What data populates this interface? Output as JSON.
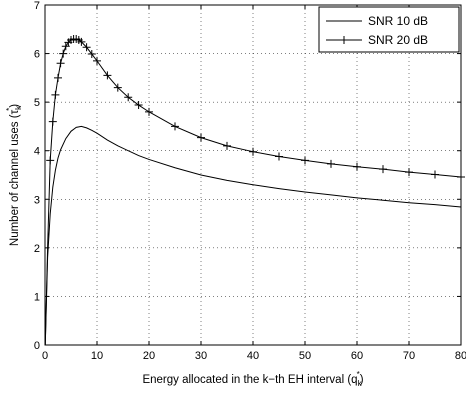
{
  "chart_data": {
    "type": "line",
    "xlabel": "Energy allocated in the k−th EH interval (q",
    "xlabel_sub": "k",
    "xlabel_sup": "*",
    "xlabel_end": ")",
    "ylabel": "Number of channel uses (τ",
    "ylabel_sub": "k",
    "ylabel_sup": "*",
    "ylabel_end": ")",
    "xlim": [
      0,
      80
    ],
    "ylim": [
      0,
      7
    ],
    "x_ticks": [
      0,
      10,
      20,
      30,
      40,
      50,
      60,
      70,
      80
    ],
    "y_ticks": [
      0,
      1,
      2,
      3,
      4,
      5,
      6,
      7
    ],
    "grid": true,
    "legend_position": "top-right",
    "series": [
      {
        "name": "SNR 10 dB",
        "marker": "none",
        "color": "#000000",
        "x": [
          0.05,
          0.5,
          1,
          1.5,
          2,
          2.5,
          3,
          4,
          5,
          6,
          7,
          8,
          9,
          10,
          12,
          14,
          16,
          18,
          20,
          25,
          30,
          35,
          40,
          45,
          50,
          55,
          60,
          65,
          70,
          75,
          80
        ],
        "y": [
          0.0,
          1.8,
          2.7,
          3.25,
          3.6,
          3.85,
          4.02,
          4.25,
          4.4,
          4.48,
          4.5,
          4.47,
          4.42,
          4.36,
          4.22,
          4.1,
          4.0,
          3.9,
          3.82,
          3.65,
          3.5,
          3.39,
          3.3,
          3.22,
          3.15,
          3.09,
          3.03,
          2.98,
          2.93,
          2.89,
          2.84
        ]
      },
      {
        "name": "SNR 20 dB",
        "marker": "+",
        "color": "#000000",
        "x": [
          0.05,
          0.5,
          1,
          1.5,
          2,
          2.5,
          3,
          3.5,
          4,
          4.5,
          5,
          5.5,
          6,
          6.5,
          7,
          8,
          9,
          10,
          12,
          14,
          16,
          18,
          20,
          25,
          30,
          35,
          40,
          45,
          50,
          55,
          60,
          65,
          70,
          75,
          80
        ],
        "y": [
          0.0,
          2.0,
          3.8,
          4.6,
          5.15,
          5.5,
          5.8,
          6.0,
          6.15,
          6.23,
          6.28,
          6.3,
          6.3,
          6.28,
          6.24,
          6.13,
          5.99,
          5.85,
          5.55,
          5.3,
          5.1,
          4.94,
          4.8,
          4.5,
          4.27,
          4.1,
          3.98,
          3.88,
          3.8,
          3.73,
          3.67,
          3.62,
          3.56,
          3.51,
          3.46
        ]
      }
    ]
  }
}
